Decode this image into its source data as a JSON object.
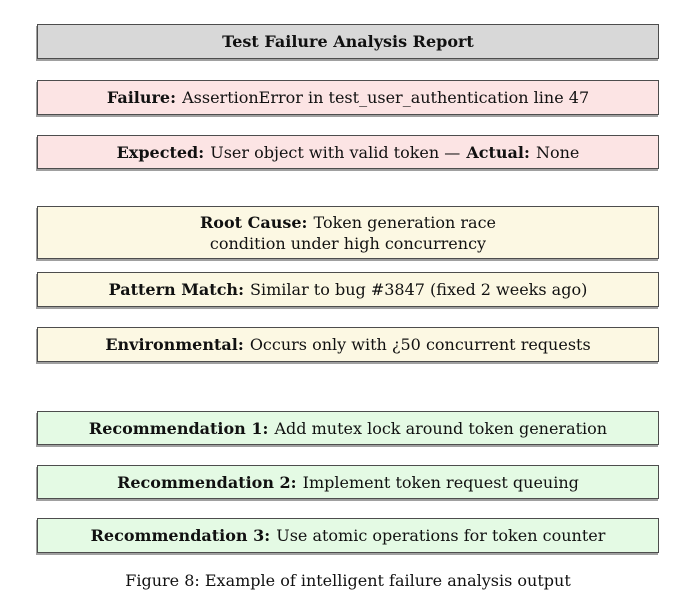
{
  "figure": {
    "header": {
      "title": "Test Failure Analysis Report"
    },
    "failure": {
      "label": "Failure:",
      "text": "AssertionError in test_user_authentication line 47"
    },
    "expected": {
      "label": "Expected:",
      "text": "User object with valid token —",
      "label2": "Actual:",
      "text2": "None"
    },
    "root_cause": {
      "label": "Root Cause:",
      "text": "Token generation race\ncondition under high concurrency"
    },
    "pattern_match": {
      "label": "Pattern Match:",
      "text": "Similar to bug #3847 (fixed 2 weeks ago)"
    },
    "environmental": {
      "label": "Environmental:",
      "text": "Occurs only with ¿50 concurrent requests"
    },
    "recommendation_1": {
      "label": "Recommendation 1:",
      "text": "Add mutex lock around token generation"
    },
    "recommendation_2": {
      "label": "Recommendation 2:",
      "text": "Implement token request queuing"
    },
    "recommendation_3": {
      "label": "Recommendation 3:",
      "text": "Use atomic operations for token counter"
    },
    "caption": "Figure 8: Example of intelligent failure analysis output"
  },
  "colors": {
    "page_bg": "#ffffff",
    "header_bg": "#d8d8d8",
    "failure_bg": "#fce4e4",
    "analysis_bg": "#fcf8e3",
    "recommendation_bg": "#e4fae4",
    "box_border": "#4d4d4d",
    "box_shadow": "#a0a0a0",
    "text": "#111111"
  }
}
